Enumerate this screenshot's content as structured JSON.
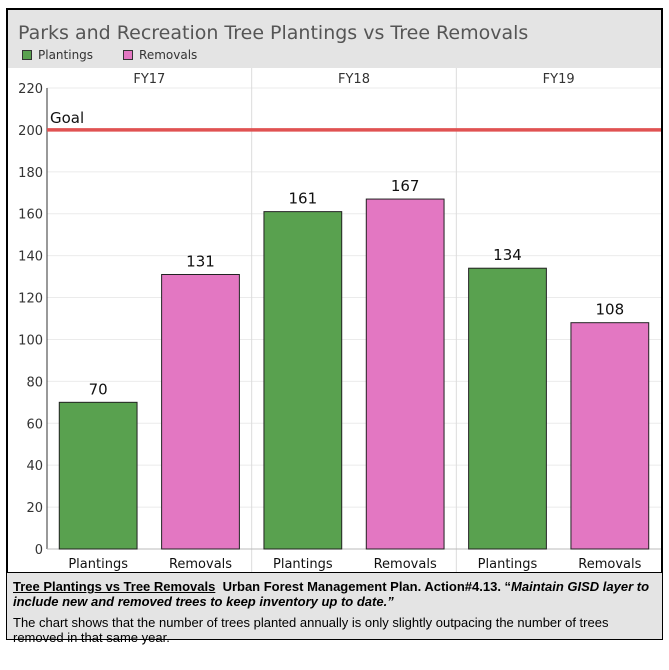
{
  "chart_data": {
    "type": "bar",
    "title": "Parks and Recreation Tree Plantings vs Tree Removals",
    "legend": [
      {
        "name": "Plantings",
        "color": "#59a14f"
      },
      {
        "name": "Removals",
        "color": "#e377c2"
      }
    ],
    "groups": [
      "FY17",
      "FY18",
      "FY19"
    ],
    "bar_labels": [
      "Plantings",
      "Removals"
    ],
    "series": [
      {
        "name": "Plantings",
        "color": "#59a14f",
        "values": [
          70,
          161,
          134
        ]
      },
      {
        "name": "Removals",
        "color": "#e377c2",
        "values": [
          131,
          167,
          108
        ]
      }
    ],
    "y_ticks": [
      0,
      20,
      40,
      60,
      80,
      100,
      120,
      140,
      160,
      180,
      200,
      220
    ],
    "ylim": [
      0,
      220
    ],
    "reference_line": {
      "label": "Goal",
      "value": 200,
      "color": "#e05252"
    },
    "grid": true,
    "legend_position": "top-left"
  },
  "caption": {
    "title": "Tree Plantings vs Tree Removals",
    "reference": "Urban Forest Management Plan. Action#4.13. “",
    "quote": "Maintain GISD layer to include new and removed trees to keep inventory up to date.”",
    "body": "The chart shows that the number of trees planted annually is only slightly outpacing the number of trees removed in that same year."
  }
}
